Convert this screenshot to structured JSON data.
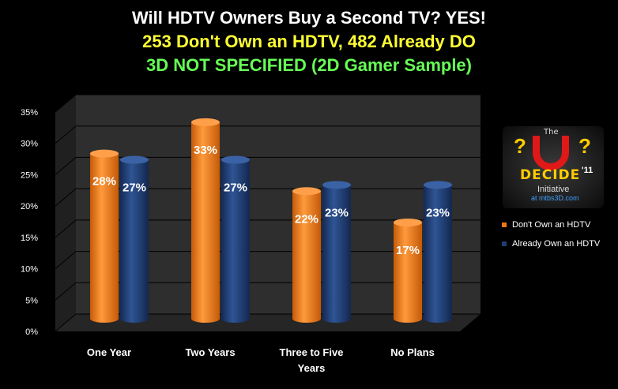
{
  "title": {
    "line1": "Will HDTV Owners Buy a Second TV?  YES!",
    "line2": "253 Don't Own an HDTV, 482 Already DO",
    "line3": "3D NOT SPECIFIED (2D Gamer Sample)"
  },
  "logo": {
    "the": "The",
    "mark1": "?",
    "mark2": "?",
    "name": "DECIDE",
    "year": "'11",
    "initiative": "Initiative",
    "url": "at mtbs3D.com"
  },
  "chart_data": {
    "type": "bar",
    "categories": [
      "One Year",
      "Two Years",
      "Three to Five Years",
      "No Plans"
    ],
    "category_lines": [
      [
        "One Year"
      ],
      [
        "Two Years"
      ],
      [
        "Three to Five",
        "Years"
      ],
      [
        "No Plans"
      ]
    ],
    "series": [
      {
        "name": "Don't Own an HDTV",
        "values": [
          28,
          33,
          22,
          17
        ],
        "labels": [
          "28%",
          "33%",
          "22%",
          "17%"
        ],
        "color": "#f07814"
      },
      {
        "name": "Already Own an HDTV",
        "values": [
          27,
          27,
          23,
          23
        ],
        "labels": [
          "27%",
          "27%",
          "23%",
          "23%"
        ],
        "color": "#1f3d73"
      }
    ],
    "ylim": [
      0,
      35
    ],
    "yticks": [
      "0%",
      "5%",
      "10%",
      "15%",
      "20%",
      "25%",
      "30%",
      "35%"
    ],
    "grid": true,
    "legend_position": "right",
    "background": "#2a2a2a"
  }
}
